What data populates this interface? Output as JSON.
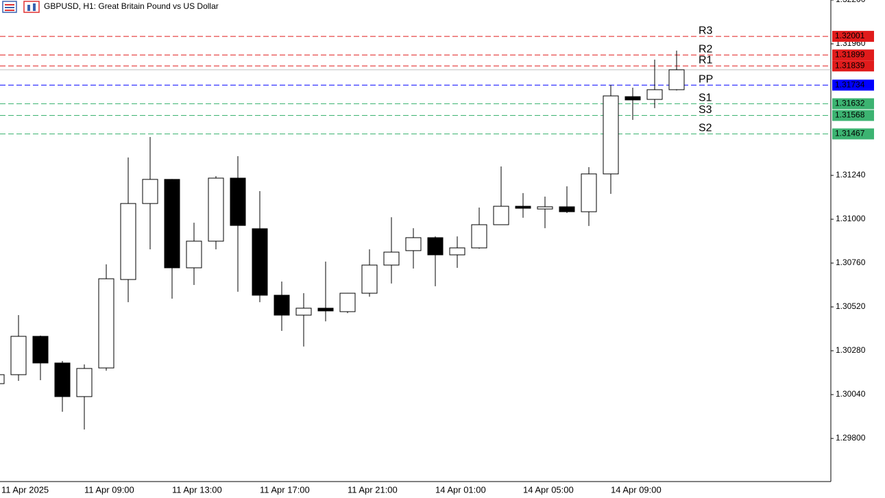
{
  "chart_data": {
    "type": "candlestick",
    "title": "GBPUSD, H1:  Great Britain Pound vs US Dollar",
    "categories": [
      "11 Apr 2025",
      null,
      null,
      null,
      "11 Apr 09:00",
      null,
      null,
      null,
      "11 Apr 13:00",
      null,
      null,
      null,
      "11 Apr 17:00",
      null,
      null,
      null,
      "11 Apr 21:00",
      null,
      null,
      null,
      "14 Apr 01:00",
      null,
      null,
      null,
      "14 Apr 05:00",
      null,
      null,
      null,
      "14 Apr 09:00",
      null,
      null,
      null
    ],
    "open": [
      1.301,
      1.30149,
      1.30359,
      1.30213,
      1.30029,
      1.30186,
      1.3067,
      1.31086,
      1.31218,
      1.30734,
      1.3088,
      1.31225,
      1.30948,
      1.30584,
      1.30475,
      1.30513,
      1.30494,
      1.30595,
      1.30749,
      1.30828,
      1.30899,
      1.30805,
      1.30843,
      1.3097,
      1.31071,
      1.31056,
      1.31068,
      1.31041,
      1.31248,
      1.31671,
      1.31656,
      1.31709
    ],
    "high": [
      1.30156,
      1.30475,
      1.30363,
      1.30224,
      1.30205,
      1.30753,
      1.31338,
      1.3145,
      1.3122,
      1.30981,
      1.31236,
      1.31345,
      1.31154,
      1.30659,
      1.30595,
      1.30768,
      1.30597,
      1.30835,
      1.31011,
      1.30951,
      1.30906,
      1.30906,
      1.31064,
      1.31289,
      1.31143,
      1.31124,
      1.3118,
      1.31285,
      1.31735,
      1.3172,
      1.31874,
      1.31923
    ],
    "low": [
      1.30093,
      1.30115,
      1.30119,
      1.29946,
      1.29849,
      1.30171,
      1.30546,
      1.30835,
      1.30565,
      1.3064,
      1.30835,
      1.30603,
      1.30546,
      1.30389,
      1.30303,
      1.30441,
      1.30486,
      1.30576,
      1.30648,
      1.3073,
      1.30633,
      1.30734,
      1.30839,
      1.3097,
      1.31008,
      1.30951,
      1.31034,
      1.30963,
      1.31139,
      1.31544,
      1.31608,
      1.31705
    ],
    "close": [
      1.30149,
      1.30359,
      1.30213,
      1.30029,
      1.30183,
      1.30674,
      1.31086,
      1.31218,
      1.30734,
      1.3088,
      1.31225,
      1.30966,
      1.30584,
      1.30475,
      1.30513,
      1.30498,
      1.30595,
      1.30749,
      1.3082,
      1.30899,
      1.30805,
      1.30843,
      1.3097,
      1.31071,
      1.3106,
      1.31068,
      1.31041,
      1.31248,
      1.31675,
      1.31653,
      1.31709,
      1.31818
    ],
    "up_color": "#ffffff",
    "down_color": "#000000",
    "ylim": [
      1.29564,
      1.322
    ],
    "yticks": [
      {
        "value": 1.322,
        "label": "1.32200"
      },
      {
        "value": 1.3196,
        "label": "1.31960"
      },
      {
        "value": 1.3124,
        "label": "1.31240"
      },
      {
        "value": 1.31,
        "label": "1.31000"
      },
      {
        "value": 1.3076,
        "label": "1.30760"
      },
      {
        "value": 1.3052,
        "label": "1.30520"
      },
      {
        "value": 1.3028,
        "label": "1.30280"
      },
      {
        "value": 1.3004,
        "label": "1.30040"
      },
      {
        "value": 1.298,
        "label": "1.29800"
      }
    ],
    "grid": false,
    "levels": [
      {
        "name": "R3",
        "value": 1.32001,
        "color": "#e01b1b"
      },
      {
        "name": "R2",
        "value": 1.31899,
        "color": "#e01b1b"
      },
      {
        "name": "R1",
        "value": 1.31839,
        "color": "#e01b1b"
      },
      {
        "name": "PP",
        "value": 1.31734,
        "color": "#0000ff"
      },
      {
        "name": "S1",
        "value": 1.31632,
        "color": "#3cb371"
      },
      {
        "name": "S3",
        "value": 1.31568,
        "color": "#3cb371"
      },
      {
        "name": "S2",
        "value": 1.31467,
        "color": "#3cb371"
      }
    ]
  }
}
